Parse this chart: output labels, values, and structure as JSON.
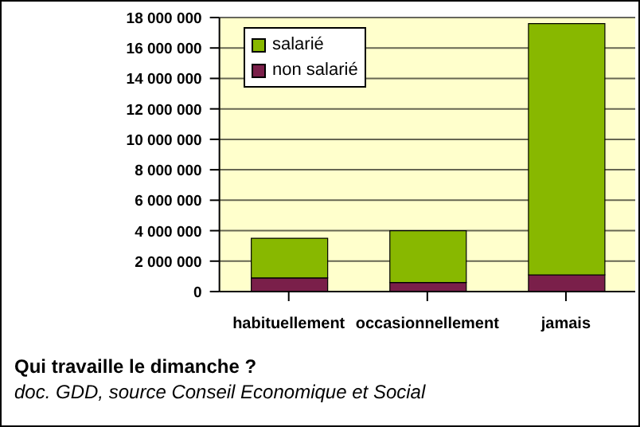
{
  "chart_data": {
    "type": "bar",
    "title": "Qui travaille le dimanche ?",
    "annotations": [
      "doc. GDD, source Conseil Economique et Social"
    ],
    "categories": [
      "habituellement",
      "occasionnellement",
      "jamais"
    ],
    "series": [
      {
        "name": "non salarié",
        "color": "#7a1f4a",
        "values": [
          900000,
          600000,
          1100000
        ]
      },
      {
        "name": "salarié",
        "color": "#88b800",
        "values": [
          2600000,
          3400000,
          16500000
        ]
      }
    ],
    "stacked": true,
    "ylim": [
      0,
      18000000
    ],
    "yticks": [
      0,
      2000000,
      4000000,
      6000000,
      8000000,
      10000000,
      12000000,
      14000000,
      16000000,
      18000000
    ],
    "grid": "y",
    "legend": "top left"
  }
}
